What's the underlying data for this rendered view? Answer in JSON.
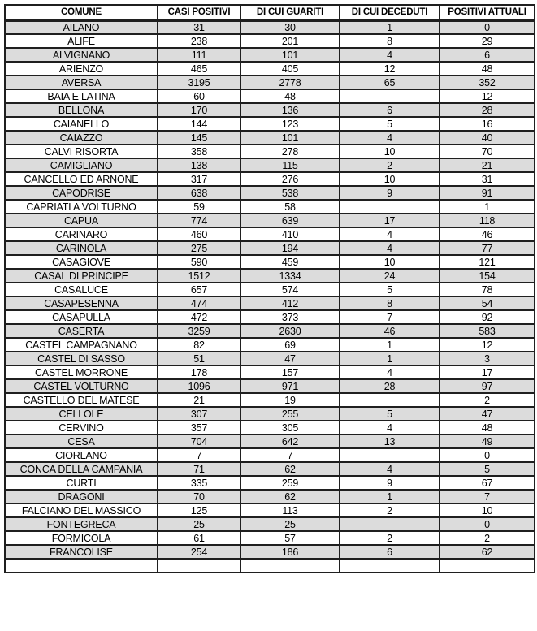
{
  "table": {
    "columns": [
      "COMUNE",
      "CASI POSITIVI",
      "DI CUI GUARITI",
      "DI CUI DECEDUTI",
      "POSITIVI ATTUALI"
    ],
    "rows": [
      [
        "AILANO",
        "31",
        "30",
        "1",
        "0"
      ],
      [
        "ALIFE",
        "238",
        "201",
        "8",
        "29"
      ],
      [
        "ALVIGNANO",
        "111",
        "101",
        "4",
        "6"
      ],
      [
        "ARIENZO",
        "465",
        "405",
        "12",
        "48"
      ],
      [
        "AVERSA",
        "3195",
        "2778",
        "65",
        "352"
      ],
      [
        "BAIA E LATINA",
        "60",
        "48",
        "",
        "12"
      ],
      [
        "BELLONA",
        "170",
        "136",
        "6",
        "28"
      ],
      [
        "CAIANELLO",
        "144",
        "123",
        "5",
        "16"
      ],
      [
        "CAIAZZO",
        "145",
        "101",
        "4",
        "40"
      ],
      [
        "CALVI RISORTA",
        "358",
        "278",
        "10",
        "70"
      ],
      [
        "CAMIGLIANO",
        "138",
        "115",
        "2",
        "21"
      ],
      [
        "CANCELLO ED ARNONE",
        "317",
        "276",
        "10",
        "31"
      ],
      [
        "CAPODRISE",
        "638",
        "538",
        "9",
        "91"
      ],
      [
        "CAPRIATI A VOLTURNO",
        "59",
        "58",
        "",
        "1"
      ],
      [
        "CAPUA",
        "774",
        "639",
        "17",
        "118"
      ],
      [
        "CARINARO",
        "460",
        "410",
        "4",
        "46"
      ],
      [
        "CARINOLA",
        "275",
        "194",
        "4",
        "77"
      ],
      [
        "CASAGIOVE",
        "590",
        "459",
        "10",
        "121"
      ],
      [
        "CASAL DI PRINCIPE",
        "1512",
        "1334",
        "24",
        "154"
      ],
      [
        "CASALUCE",
        "657",
        "574",
        "5",
        "78"
      ],
      [
        "CASAPESENNA",
        "474",
        "412",
        "8",
        "54"
      ],
      [
        "CASAPULLA",
        "472",
        "373",
        "7",
        "92"
      ],
      [
        "CASERTA",
        "3259",
        "2630",
        "46",
        "583"
      ],
      [
        "CASTEL CAMPAGNANO",
        "82",
        "69",
        "1",
        "12"
      ],
      [
        "CASTEL DI SASSO",
        "51",
        "47",
        "1",
        "3"
      ],
      [
        "CASTEL MORRONE",
        "178",
        "157",
        "4",
        "17"
      ],
      [
        "CASTEL VOLTURNO",
        "1096",
        "971",
        "28",
        "97"
      ],
      [
        "CASTELLO DEL MATESE",
        "21",
        "19",
        "",
        "2"
      ],
      [
        "CELLOLE",
        "307",
        "255",
        "5",
        "47"
      ],
      [
        "CERVINO",
        "357",
        "305",
        "4",
        "48"
      ],
      [
        "CESA",
        "704",
        "642",
        "13",
        "49"
      ],
      [
        "CIORLANO",
        "7",
        "7",
        "",
        "0"
      ],
      [
        "CONCA DELLA CAMPANIA",
        "71",
        "62",
        "4",
        "5"
      ],
      [
        "CURTI",
        "335",
        "259",
        "9",
        "67"
      ],
      [
        "DRAGONI",
        "70",
        "62",
        "1",
        "7"
      ],
      [
        "FALCIANO DEL MASSICO",
        "125",
        "113",
        "2",
        "10"
      ],
      [
        "FONTEGRECA",
        "25",
        "25",
        "",
        "0"
      ],
      [
        "FORMICOLA",
        "61",
        "57",
        "2",
        "2"
      ],
      [
        "FRANCOLISE",
        "254",
        "186",
        "6",
        "62"
      ]
    ]
  },
  "colors": {
    "stripe": "#dcdcdc",
    "border": "#1f1f1f",
    "text": "#000000",
    "background": "#ffffff"
  }
}
